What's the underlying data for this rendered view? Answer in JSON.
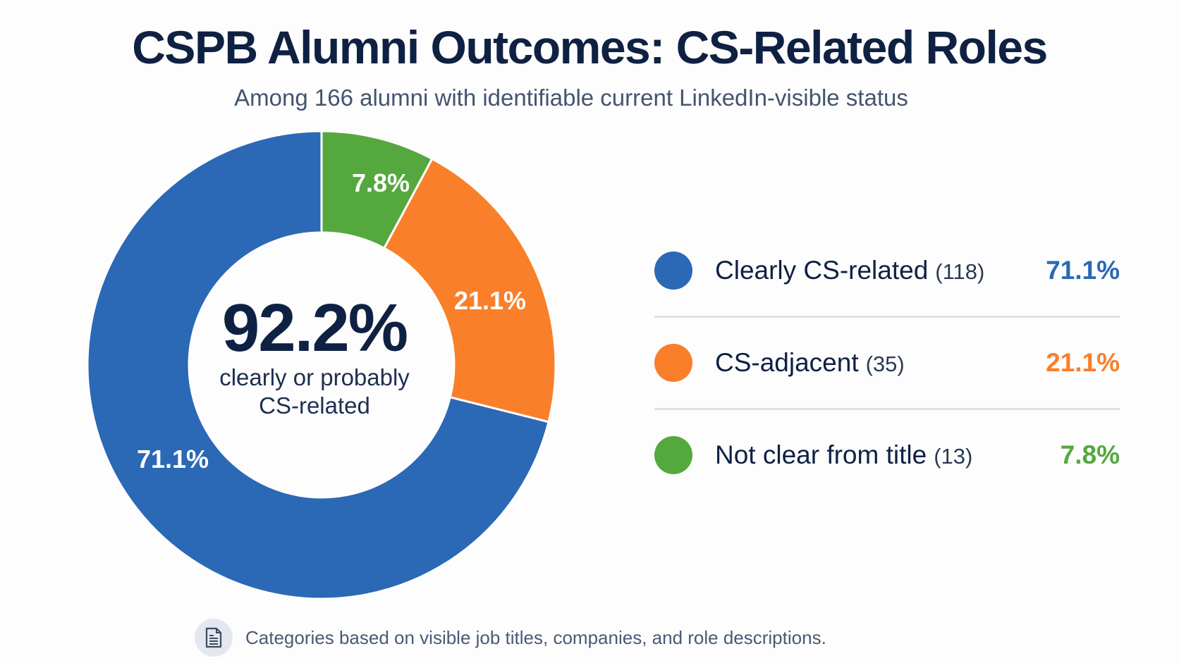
{
  "header": {
    "title": "CSPB Alumni Outcomes: CS-Related Roles",
    "subtitle": "Among 166 alumni with identifiable current LinkedIn-visible status"
  },
  "donut": {
    "center_value": "92.2%",
    "center_caption_line1": "clearly or probably",
    "center_caption_line2": "CS-related",
    "slice_labels": {
      "clearly": "71.1%",
      "adjacent": "21.1%",
      "not_clear": "7.8%"
    }
  },
  "legend": {
    "items": [
      {
        "label": "Clearly CS-related",
        "count": "(118)",
        "percent": "71.1%",
        "color": "#2b68b5"
      },
      {
        "label": "CS-adjacent",
        "count": "(35)",
        "percent": "21.1%",
        "color": "#fa7f2a"
      },
      {
        "label": "Not clear from title",
        "count": "(13)",
        "percent": "7.8%",
        "color": "#55a83d"
      }
    ]
  },
  "footnote": {
    "icon": "document-icon",
    "text": "Categories based on visible job titles, companies, and role descriptions."
  },
  "colors": {
    "clearly": "#2b68b5",
    "adjacent": "#fa7f2a",
    "not_clear": "#55a83d",
    "title": "#0f2143",
    "divider": "#dde2ea"
  },
  "chart_data": {
    "type": "pie",
    "variant": "donut",
    "title": "CSPB Alumni Outcomes: CS-Related Roles",
    "subtitle": "Among 166 alumni with identifiable current LinkedIn-visible status",
    "categories": [
      "Clearly CS-related",
      "CS-adjacent",
      "Not clear from title"
    ],
    "values": [
      118,
      35,
      13
    ],
    "percentages": [
      71.1,
      21.1,
      7.8
    ],
    "colors": [
      "#2b68b5",
      "#fa7f2a",
      "#55a83d"
    ],
    "total": 166,
    "center_annotation": "92.2% clearly or probably CS-related",
    "legend_position": "right",
    "start_angle": "12 o'clock, counter-clockwise order: green (7.8%) clockwise from top, then orange (21.1%), then blue (71.1%)",
    "footnote": "Categories based on visible job titles, companies, and role descriptions."
  }
}
